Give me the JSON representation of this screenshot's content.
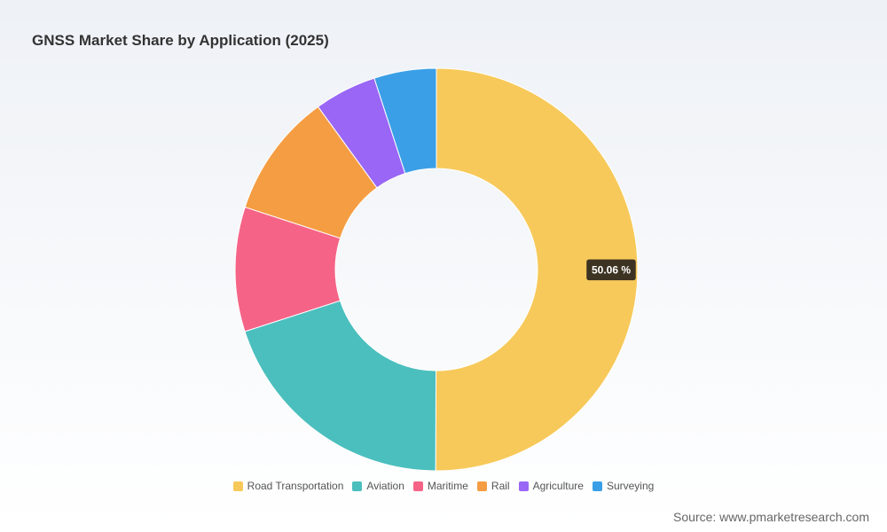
{
  "chart_data": {
    "type": "pie",
    "variant": "donut",
    "title": "GNSS Market Share by Application (2025)",
    "categories": [
      "Road Transportation",
      "Aviation",
      "Maritime",
      "Rail",
      "Agriculture",
      "Surveying"
    ],
    "values": [
      50.06,
      19.96,
      10.0,
      9.98,
      5.0,
      5.0
    ],
    "unit": "%",
    "colors": [
      "#f7c95a",
      "#4bbfbe",
      "#f56487",
      "#f59d43",
      "#9966f5",
      "#3a9fe6"
    ],
    "data_labels": [
      {
        "category": "Road Transportation",
        "text": "50.06 %"
      }
    ],
    "legend": {
      "position": "bottom-center"
    }
  },
  "source": "Source: www.pmarketresearch.com"
}
